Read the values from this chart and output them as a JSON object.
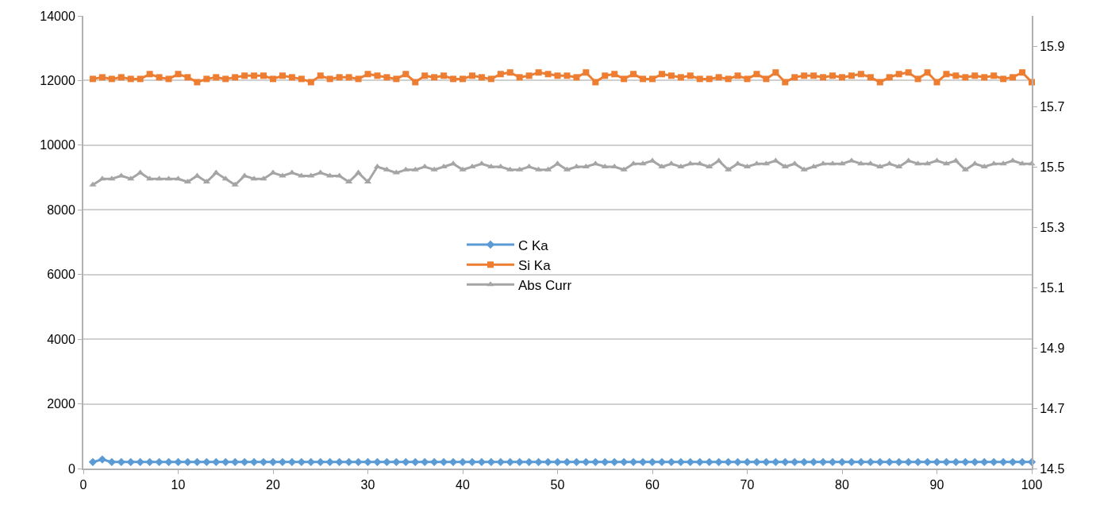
{
  "chart_data": {
    "type": "line",
    "x": [
      1,
      2,
      3,
      4,
      5,
      6,
      7,
      8,
      9,
      10,
      11,
      12,
      13,
      14,
      15,
      16,
      17,
      18,
      19,
      20,
      21,
      22,
      23,
      24,
      25,
      26,
      27,
      28,
      29,
      30,
      31,
      32,
      33,
      34,
      35,
      36,
      37,
      38,
      39,
      40,
      41,
      42,
      43,
      44,
      45,
      46,
      47,
      48,
      49,
      50,
      51,
      52,
      53,
      54,
      55,
      56,
      57,
      58,
      59,
      60,
      61,
      62,
      63,
      64,
      65,
      66,
      67,
      68,
      69,
      70,
      71,
      72,
      73,
      74,
      75,
      76,
      77,
      78,
      79,
      80,
      81,
      82,
      83,
      84,
      85,
      86,
      87,
      88,
      89,
      90,
      91,
      92,
      93,
      94,
      95,
      96,
      97,
      98,
      99,
      100
    ],
    "series": [
      {
        "name": "C Ka",
        "color": "#5b9bd5",
        "marker": "diamond",
        "values": [
          200,
          280,
          200,
          200,
          200,
          200,
          200,
          200,
          200,
          200,
          200,
          200,
          200,
          200,
          200,
          200,
          200,
          200,
          200,
          200,
          200,
          200,
          200,
          200,
          200,
          200,
          200,
          200,
          200,
          200,
          200,
          200,
          200,
          200,
          200,
          200,
          200,
          200,
          200,
          200,
          200,
          200,
          200,
          200,
          200,
          200,
          200,
          200,
          200,
          200,
          200,
          200,
          200,
          200,
          200,
          200,
          200,
          200,
          200,
          200,
          200,
          200,
          200,
          200,
          200,
          200,
          200,
          200,
          200,
          200,
          200,
          200,
          200,
          200,
          200,
          200,
          200,
          200,
          200,
          200,
          200,
          200,
          200,
          200,
          200,
          200,
          200,
          200,
          200,
          200,
          200,
          200,
          200,
          200,
          200,
          200,
          200,
          200,
          200,
          200
        ]
      },
      {
        "name": "Si Ka",
        "color": "#ed7d31",
        "marker": "square",
        "values": [
          12050,
          12100,
          12050,
          12100,
          12050,
          12050,
          12200,
          12100,
          12050,
          12200,
          12100,
          11950,
          12050,
          12100,
          12050,
          12100,
          12150,
          12150,
          12150,
          12050,
          12150,
          12100,
          12050,
          11950,
          12150,
          12050,
          12100,
          12100,
          12050,
          12200,
          12150,
          12100,
          12050,
          12200,
          11950,
          12150,
          12100,
          12150,
          12050,
          12050,
          12150,
          12100,
          12050,
          12200,
          12250,
          12100,
          12150,
          12250,
          12200,
          12150,
          12150,
          12100,
          12250,
          11950,
          12150,
          12200,
          12050,
          12200,
          12050,
          12050,
          12200,
          12150,
          12100,
          12150,
          12050,
          12050,
          12100,
          12050,
          12150,
          12050,
          12200,
          12050,
          12250,
          11950,
          12100,
          12150,
          12150,
          12100,
          12150,
          12100,
          12150,
          12200,
          12100,
          11950,
          12100,
          12200,
          12250,
          12050,
          12250,
          11950,
          12200,
          12150,
          12100,
          12150,
          12100,
          12150,
          12050,
          12100,
          12250,
          11950
        ]
      },
      {
        "name": "Abs Curr",
        "color": "#a5a5a5",
        "marker": "triangle",
        "axis": "y2",
        "values": [
          15.44,
          15.46,
          15.46,
          15.47,
          15.46,
          15.48,
          15.46,
          15.46,
          15.46,
          15.46,
          15.45,
          15.47,
          15.45,
          15.48,
          15.46,
          15.44,
          15.47,
          15.46,
          15.46,
          15.48,
          15.47,
          15.48,
          15.47,
          15.47,
          15.48,
          15.47,
          15.47,
          15.45,
          15.48,
          15.45,
          15.5,
          15.49,
          15.48,
          15.49,
          15.49,
          15.5,
          15.49,
          15.5,
          15.51,
          15.49,
          15.5,
          15.51,
          15.5,
          15.5,
          15.49,
          15.49,
          15.5,
          15.49,
          15.49,
          15.51,
          15.49,
          15.5,
          15.5,
          15.51,
          15.5,
          15.5,
          15.49,
          15.51,
          15.51,
          15.52,
          15.5,
          15.51,
          15.5,
          15.51,
          15.51,
          15.5,
          15.52,
          15.49,
          15.51,
          15.5,
          15.51,
          15.51,
          15.52,
          15.5,
          15.51,
          15.49,
          15.5,
          15.51,
          15.51,
          15.51,
          15.52,
          15.51,
          15.51,
          15.5,
          15.51,
          15.5,
          15.52,
          15.51,
          15.51,
          15.52,
          15.51,
          15.52,
          15.49,
          15.51,
          15.5,
          15.51,
          15.51,
          15.52,
          15.51,
          15.51
        ]
      }
    ],
    "xlim": [
      0,
      100
    ],
    "xticks": [
      0,
      10,
      20,
      30,
      40,
      50,
      60,
      70,
      80,
      90,
      100
    ],
    "ylim": [
      0,
      14000
    ],
    "yticks": [
      0,
      2000,
      4000,
      6000,
      8000,
      10000,
      12000,
      14000
    ],
    "y2lim": [
      14.5,
      16.0
    ],
    "y2ticks": [
      14.5,
      14.7,
      14.9,
      15.1,
      15.3,
      15.5,
      15.7,
      15.9
    ],
    "grid": "y",
    "legend": "center"
  }
}
